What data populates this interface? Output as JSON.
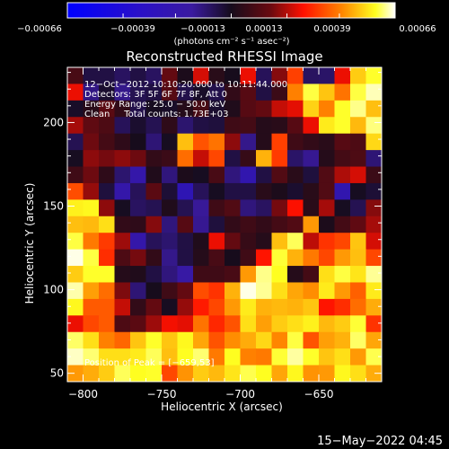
{
  "colorbar": {
    "tick_labels": [
      "−0.00066",
      "−0.00039",
      "−0.00013",
      "0.00013",
      "0.00039",
      "0.00066"
    ],
    "unit_label": "(photons cm⁻² s⁻¹ asec⁻²)"
  },
  "plot": {
    "title": "Reconstructed RHESSI Image",
    "info_lines": [
      "12−Oct−2012 10:10:20.000 to 10:11:44.000",
      "Detectors: 3F 5F 6F 7F 8F, Att 0",
      "Energy Range: 25.0 − 50.0 keV",
      "Clean     Total counts: 1.73E+03"
    ],
    "peak_text": "Position of Peak = [−659,53]"
  },
  "footer": {
    "timestamp": "15−May−2022 04:45"
  },
  "chart_data": {
    "type": "heatmap",
    "title": "Reconstructed RHESSI Image",
    "xlabel": "Heliocentric X (arcsec)",
    "ylabel": "Heliocentric Y (arcsec)",
    "xlim": [
      -810,
      -610
    ],
    "ylim": [
      45,
      233
    ],
    "x_ticks": [
      -800,
      -750,
      -700,
      -650
    ],
    "x_tick_labels": [
      "−800",
      "−750",
      "−700",
      "−650"
    ],
    "y_ticks": [
      50,
      100,
      150,
      200
    ],
    "y_tick_labels": [
      "50",
      "100",
      "150",
      "200"
    ],
    "value_range": [
      -0.00066,
      0.00066
    ],
    "colormap": [
      "#0000ff",
      "#3a1aa0",
      "#160c1c",
      "#6a0a10",
      "#ff1000",
      "#ff8800",
      "#ffff20",
      "#ffffff"
    ],
    "grid": false,
    "peak_position": [
      -659,
      53
    ],
    "grid_nx": 20,
    "grid_ny": 19,
    "pixel_values": [
      [
        -0.00017,
        -0.00034,
        -0.00034,
        -0.00038,
        -0.00034,
        -0.00038,
        -0.00011,
        -0.00027,
        4e-05,
        -0.00024,
        -0.00028,
        7e-05,
        -0.00037,
        -6e-05,
        0.00017,
        -0.00038,
        -0.00039,
        7e-05,
        0.00039,
        0.00048
      ],
      [
        7e-05,
        -0.00043,
        -0.00031,
        -0.00044,
        -0.00036,
        -0.00034,
        -0.00014,
        -0.00035,
        -0.0003,
        -0.00035,
        -0.00022,
        -0.00014,
        -0.00034,
        -0.0002,
        0.00027,
        0.0005,
        0.00038,
        0.00025,
        0.0005,
        0.0006
      ],
      [
        -0.0003,
        -0.00024,
        -0.00013,
        -0.00022,
        -0.00035,
        -0.00029,
        -0.0003,
        -0.00025,
        -0.00017,
        -0.00031,
        -0.00026,
        -0.00014,
        -0.00011,
        2e-05,
        6e-05,
        0.0004,
        0.00027,
        0.00048,
        0.00056,
        0.00037
      ],
      [
        -2e-05,
        -0.00012,
        -0.00016,
        -0.00037,
        -0.00031,
        -0.00036,
        -0.00023,
        -0.0004,
        -0.00034,
        -0.00033,
        -0.00019,
        -0.00018,
        -0.00025,
        -0.00024,
        -0.00014,
        7e-05,
        0.00044,
        0.00048,
        0.00036,
        0.00055
      ],
      [
        -0.00036,
        -9e-05,
        -0.00018,
        -0.00023,
        -0.00028,
        -0.00041,
        -0.00029,
        0.00037,
        0.0002,
        0.00025,
        -5e-05,
        -0.00044,
        -0.00025,
        0.00017,
        -0.00019,
        -0.00022,
        -0.00024,
        -0.00014,
        -0.00016,
        0.00041
      ],
      [
        -0.00029,
        -5e-05,
        -8e-05,
        -5e-05,
        -9e-05,
        -0.00022,
        -0.0002,
        0.00024,
        2e-05,
        0.00018,
        -0.00034,
        -0.00021,
        0.00035,
        0.00016,
        -0.00039,
        -0.00045,
        -0.00025,
        -0.00018,
        -0.00016,
        -0.00041
      ],
      [
        -0.00019,
        -9e-05,
        -0.00023,
        -0.0004,
        -0.00049,
        -0.00026,
        -0.00042,
        -0.00027,
        -0.00029,
        -0.00017,
        -0.00042,
        -0.0005,
        -0.00034,
        -0.00015,
        -0.00024,
        -0.00033,
        -0.00015,
        -1e-05,
        4e-05,
        -0.0002
      ],
      [
        0.00019,
        -4e-05,
        -0.00033,
        -0.00049,
        -0.00037,
        -0.00013,
        -0.00032,
        -0.00051,
        -0.00037,
        -0.00029,
        -0.00034,
        -0.00034,
        -0.00024,
        -0.00027,
        -0.00031,
        -0.00024,
        -0.00015,
        -0.0005,
        -0.00029,
        -0.00032
      ],
      [
        0.00045,
        0.00046,
        -5e-05,
        -0.00029,
        -0.00038,
        -0.00036,
        -0.00026,
        -0.00036,
        -0.00046,
        -0.00019,
        -0.00015,
        -0.00042,
        -0.00038,
        -8e-05,
        9e-05,
        -0.00024,
        -2e-05,
        -0.00029,
        -0.00036,
        -6e-05
      ],
      [
        0.00037,
        0.00036,
        0.00042,
        -0.00022,
        -0.00023,
        -6e-05,
        -0.00042,
        -0.00014,
        -0.00045,
        -0.00033,
        -0.00022,
        -0.00019,
        -0.00022,
        -0.00018,
        -0.00015,
        0.00031,
        -0.00027,
        -0.00018,
        -0.00012,
        -2e-05
      ],
      [
        0.0005,
        0.00026,
        0.00016,
        -3e-05,
        -0.00049,
        -0.00037,
        -0.0004,
        -0.00034,
        -0.00026,
        7e-05,
        -0.00011,
        -0.00021,
        -0.00025,
        0.00037,
        0.00052,
        1e-05,
        0.00015,
        0.00018,
        0.00038,
        4e-05
      ],
      [
        0.00064,
        0.0005,
        0.00014,
        -0.00016,
        -8e-05,
        -0.00022,
        -0.00044,
        -0.00034,
        -0.00025,
        -0.00017,
        -0.00028,
        -0.00019,
        0.0001,
        0.00049,
        0.00035,
        0.00026,
        0.00018,
        0.00031,
        0.00037,
        0.00018
      ],
      [
        0.00039,
        0.00048,
        0.00048,
        -0.00025,
        -0.00026,
        -0.00034,
        -0.00042,
        -0.00048,
        -0.00019,
        -0.00019,
        -0.00017,
        0.00031,
        0.00056,
        0.00047,
        -0.00025,
        -0.00018,
        0.00042,
        0.0005,
        0.00043,
        0.00057
      ],
      [
        0.00059,
        0.00032,
        0.00024,
        -7e-05,
        -0.00041,
        -0.00028,
        -0.00019,
        -0.00011,
        0.00019,
        0.00015,
        0.00035,
        0.00064,
        0.00057,
        0.00042,
        0.00033,
        0.00029,
        0.00044,
        0.00031,
        0.00022,
        0.00044
      ],
      [
        0.00046,
        0.00021,
        0.00021,
        2e-05,
        -0.00022,
        -0.00011,
        -0.00029,
        -4e-05,
        0.00011,
        0.00018,
        0.00031,
        0.00044,
        0.00035,
        0.00036,
        0.00035,
        0.00038,
        0.0001,
        0.00014,
        0.00024,
        0.00034
      ],
      [
        7e-05,
        0.00018,
        0.00021,
        -0.00016,
        -0.00013,
        -3e-05,
        8e-05,
        6e-05,
        0.00025,
        0.00013,
        0.0002,
        0.00042,
        0.00032,
        0.00039,
        0.00042,
        0.00045,
        0.00036,
        0.00039,
        0.00049,
        0.00015
      ],
      [
        0.00053,
        0.00042,
        0.00027,
        0.00023,
        0.00038,
        0.00048,
        0.00038,
        0.00046,
        0.00033,
        0.0002,
        0.00029,
        0.00034,
        0.00041,
        0.00028,
        0.0005,
        0.0002,
        0.00032,
        0.00035,
        0.00053,
        0.00033
      ],
      [
        0.00061,
        0.00054,
        0.00042,
        0.00042,
        0.00044,
        0.00052,
        0.00037,
        0.00047,
        0.00054,
        0.00026,
        0.00047,
        0.00027,
        0.00026,
        0.00049,
        0.00058,
        0.00048,
        0.00038,
        0.00042,
        0.00031,
        0.00051
      ],
      [
        0.00031,
        0.00034,
        0.00039,
        0.00052,
        0.00047,
        0.00048,
        0.00018,
        0.0003,
        0.00039,
        0.00036,
        0.00043,
        0.00051,
        0.00047,
        0.00033,
        0.00046,
        0.0003,
        0.00031,
        0.00046,
        0.00042,
        0.00034
      ]
    ]
  }
}
